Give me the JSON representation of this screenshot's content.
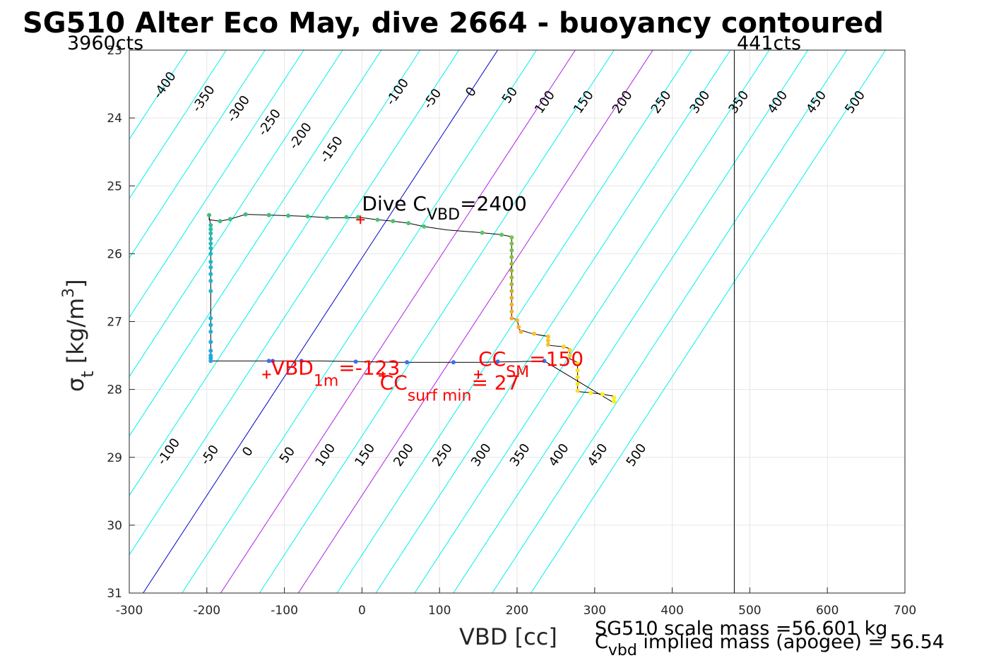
{
  "chart_data": {
    "type": "scatter",
    "title": "SG510 Alter Eco May, dive 2664 - buoyancy contoured",
    "xlabel": "VBD [cc]",
    "ylabel": "σ_t [kg/m^3]",
    "ylabel_main": "σ",
    "ylabel_sub": "t",
    "ylabel_rest": " [kg/m",
    "ylabel_sup": "3",
    "ylabel_close": "]",
    "xlim": [
      -300,
      700
    ],
    "ylim": [
      31,
      23
    ],
    "xticks": [
      "-300",
      "-200",
      "-100",
      "0",
      "100",
      "200",
      "300",
      "400",
      "500",
      "600",
      "700"
    ],
    "yticks": [
      "23",
      "24",
      "25",
      "26",
      "27",
      "28",
      "29",
      "30",
      "31"
    ],
    "grid": true,
    "limit_line_x": 480,
    "counts_left": "3960cts",
    "counts_right": "441cts",
    "contour_slope": 0.0175,
    "contour_levels": [
      -400,
      -350,
      -300,
      -250,
      -200,
      -150,
      -100,
      -50,
      0,
      50,
      100,
      150,
      200,
      250,
      300,
      350,
      400,
      450,
      500
    ],
    "contour_colors": {
      "default": "#00f0f0",
      "zero": "#0000cc",
      "highlight": "#b020e0"
    },
    "highlight_levels": [
      100,
      200
    ],
    "top_labels": [
      {
        "text": "-400",
        "x": -250,
        "y": 23.55
      },
      {
        "text": "-350",
        "x": -200,
        "y": 23.75
      },
      {
        "text": "-300",
        "x": -155,
        "y": 23.9
      },
      {
        "text": "-250",
        "x": -115,
        "y": 24.1
      },
      {
        "text": "-200",
        "x": -75,
        "y": 24.3
      },
      {
        "text": "-150",
        "x": -35,
        "y": 24.5
      },
      {
        "text": "-100",
        "x": 50,
        "y": 23.65
      },
      {
        "text": "-50",
        "x": 95,
        "y": 23.75
      },
      {
        "text": "0",
        "x": 145,
        "y": 23.65
      },
      {
        "text": "50",
        "x": 195,
        "y": 23.7
      },
      {
        "text": "100",
        "x": 240,
        "y": 23.8
      },
      {
        "text": "150",
        "x": 290,
        "y": 23.8
      },
      {
        "text": "200",
        "x": 340,
        "y": 23.8
      },
      {
        "text": "250",
        "x": 390,
        "y": 23.8
      },
      {
        "text": "300",
        "x": 440,
        "y": 23.8
      },
      {
        "text": "350",
        "x": 490,
        "y": 23.8
      },
      {
        "text": "400",
        "x": 540,
        "y": 23.8
      },
      {
        "text": "450",
        "x": 590,
        "y": 23.8
      },
      {
        "text": "500",
        "x": 640,
        "y": 23.8
      }
    ],
    "bottom_labels": [
      {
        "text": "-100",
        "x": -245,
        "y": 28.95
      },
      {
        "text": "-50",
        "x": -192,
        "y": 29.0
      },
      {
        "text": "0",
        "x": -143,
        "y": 28.95
      },
      {
        "text": "50",
        "x": -92,
        "y": 29.0
      },
      {
        "text": "100",
        "x": -43,
        "y": 29.0
      },
      {
        "text": "150",
        "x": 8,
        "y": 29.0
      },
      {
        "text": "200",
        "x": 58,
        "y": 29.0
      },
      {
        "text": "250",
        "x": 108,
        "y": 29.0
      },
      {
        "text": "300",
        "x": 158,
        "y": 29.0
      },
      {
        "text": "350",
        "x": 208,
        "y": 29.0
      },
      {
        "text": "400",
        "x": 258,
        "y": 29.0
      },
      {
        "text": "450",
        "x": 308,
        "y": 29.0
      },
      {
        "text": "500",
        "x": 358,
        "y": 29.0
      }
    ],
    "trajectory": [
      [
        -197,
        25.45
      ],
      [
        -197,
        25.5
      ],
      [
        -183,
        25.52
      ],
      [
        -170,
        25.49
      ],
      [
        -150,
        25.42
      ],
      [
        -120,
        25.43
      ],
      [
        -95,
        25.44
      ],
      [
        -70,
        25.45
      ],
      [
        -45,
        25.47
      ],
      [
        -20,
        25.47
      ],
      [
        0,
        25.47
      ],
      [
        20,
        25.5
      ],
      [
        40,
        25.52
      ],
      [
        60,
        25.55
      ],
      [
        80,
        25.6
      ],
      [
        110,
        25.65
      ],
      [
        155,
        25.69
      ],
      [
        180,
        25.72
      ],
      [
        193,
        25.75
      ],
      [
        193,
        26.0
      ],
      [
        193,
        26.3
      ],
      [
        193,
        26.6
      ],
      [
        193,
        26.95
      ],
      [
        200,
        26.97
      ],
      [
        203,
        27.12
      ],
      [
        220,
        27.18
      ],
      [
        240,
        27.22
      ],
      [
        240,
        27.35
      ],
      [
        260,
        27.37
      ],
      [
        268,
        27.4
      ],
      [
        268,
        27.55
      ],
      [
        278,
        27.6
      ],
      [
        278,
        28.03
      ],
      [
        295,
        28.05
      ],
      [
        310,
        28.07
      ],
      [
        325,
        28.1
      ],
      [
        325,
        28.2
      ],
      [
        235,
        27.58
      ],
      [
        200,
        27.59
      ],
      [
        150,
        27.6
      ],
      [
        100,
        27.6
      ],
      [
        50,
        27.6
      ],
      [
        0,
        27.59
      ],
      [
        -50,
        27.58
      ],
      [
        -100,
        27.58
      ],
      [
        -150,
        27.58
      ],
      [
        -195,
        27.58
      ],
      [
        -195,
        27.5
      ],
      [
        -195,
        27.2
      ],
      [
        -195,
        26.8
      ],
      [
        -195,
        26.4
      ],
      [
        -195,
        26.0
      ],
      [
        -195,
        25.6
      ],
      [
        -197,
        25.45
      ]
    ],
    "points": [
      {
        "x": -197,
        "y": 25.43,
        "c": "#3fbf7f"
      },
      {
        "x": -183,
        "y": 25.52,
        "c": "#3fbf7f"
      },
      {
        "x": -170,
        "y": 25.49,
        "c": "#3fbf7f"
      },
      {
        "x": -150,
        "y": 25.42,
        "c": "#3fbf7f"
      },
      {
        "x": -120,
        "y": 25.43,
        "c": "#3fbf7f"
      },
      {
        "x": -95,
        "y": 25.44,
        "c": "#3fbf7f"
      },
      {
        "x": -70,
        "y": 25.45,
        "c": "#3fbf7f"
      },
      {
        "x": -45,
        "y": 25.47,
        "c": "#3fbf7f"
      },
      {
        "x": -20,
        "y": 25.46,
        "c": "#3fbf7f"
      },
      {
        "x": -5,
        "y": 25.46,
        "c": "#3fbf7f"
      },
      {
        "x": 20,
        "y": 25.5,
        "c": "#4cc46e"
      },
      {
        "x": 40,
        "y": 25.52,
        "c": "#4cc46e"
      },
      {
        "x": 60,
        "y": 25.55,
        "c": "#4cc46e"
      },
      {
        "x": 80,
        "y": 25.6,
        "c": "#4cc46e"
      },
      {
        "x": 155,
        "y": 25.69,
        "c": "#5ac762"
      },
      {
        "x": 180,
        "y": 25.72,
        "c": "#5ac762"
      },
      {
        "x": 193,
        "y": 25.76,
        "c": "#7cc24a"
      },
      {
        "x": 193,
        "y": 25.85,
        "c": "#7cc24a"
      },
      {
        "x": 193,
        "y": 25.95,
        "c": "#7cc24a"
      },
      {
        "x": 193,
        "y": 26.05,
        "c": "#8cc040"
      },
      {
        "x": 193,
        "y": 26.15,
        "c": "#8cc040"
      },
      {
        "x": 193,
        "y": 26.25,
        "c": "#9cbd38"
      },
      {
        "x": 193,
        "y": 26.35,
        "c": "#a8b935"
      },
      {
        "x": 193,
        "y": 26.45,
        "c": "#b8b532"
      },
      {
        "x": 193,
        "y": 26.55,
        "c": "#d0b030"
      },
      {
        "x": 193,
        "y": 26.65,
        "c": "#e6ae30"
      },
      {
        "x": 193,
        "y": 26.75,
        "c": "#f5ad35"
      },
      {
        "x": 193,
        "y": 26.85,
        "c": "#f5ad35"
      },
      {
        "x": 193,
        "y": 26.95,
        "c": "#f5ad35"
      },
      {
        "x": 200,
        "y": 26.98,
        "c": "#f5b535"
      },
      {
        "x": 202,
        "y": 27.08,
        "c": "#f5b535"
      },
      {
        "x": 205,
        "y": 27.15,
        "c": "#f5b535"
      },
      {
        "x": 222,
        "y": 27.18,
        "c": "#f8c030"
      },
      {
        "x": 240,
        "y": 27.22,
        "c": "#f8c030"
      },
      {
        "x": 240,
        "y": 27.28,
        "c": "#f8c030"
      },
      {
        "x": 240,
        "y": 27.34,
        "c": "#f8c030"
      },
      {
        "x": 260,
        "y": 27.37,
        "c": "#fad028"
      },
      {
        "x": 268,
        "y": 27.42,
        "c": "#fad028"
      },
      {
        "x": 268,
        "y": 27.5,
        "c": "#fad028"
      },
      {
        "x": 278,
        "y": 27.62,
        "c": "#fbe020"
      },
      {
        "x": 278,
        "y": 27.72,
        "c": "#fbe020"
      },
      {
        "x": 278,
        "y": 27.82,
        "c": "#fbe020"
      },
      {
        "x": 278,
        "y": 27.92,
        "c": "#fbe020"
      },
      {
        "x": 278,
        "y": 28.02,
        "c": "#fbe020"
      },
      {
        "x": 295,
        "y": 28.05,
        "c": "#fdf015"
      },
      {
        "x": 310,
        "y": 28.07,
        "c": "#fdf015"
      },
      {
        "x": 325,
        "y": 28.12,
        "c": "#fdf015"
      },
      {
        "x": 325,
        "y": 28.18,
        "c": "#fdf015"
      },
      {
        "x": 235,
        "y": 27.58,
        "c": "#3b6ef0"
      },
      {
        "x": 175,
        "y": 27.59,
        "c": "#3b6ef0"
      },
      {
        "x": 118,
        "y": 27.6,
        "c": "#3b6ef0"
      },
      {
        "x": 58,
        "y": 27.6,
        "c": "#3b6ef0"
      },
      {
        "x": -8,
        "y": 27.59,
        "c": "#3b6ef0"
      },
      {
        "x": -78,
        "y": 27.58,
        "c": "#3b6ef0"
      },
      {
        "x": -115,
        "y": 27.58,
        "c": "#3b6ef0"
      },
      {
        "x": -120,
        "y": 27.58,
        "c": "#3b6ef0"
      },
      {
        "x": -195,
        "y": 27.58,
        "c": "#1fa8e0"
      },
      {
        "x": -195,
        "y": 27.54,
        "c": "#1fa8e0"
      },
      {
        "x": -195,
        "y": 27.5,
        "c": "#1fa8e0"
      },
      {
        "x": -195,
        "y": 27.43,
        "c": "#1fa8e0"
      },
      {
        "x": -195,
        "y": 27.3,
        "c": "#1fa8e0"
      },
      {
        "x": -195,
        "y": 27.15,
        "c": "#1fb0d8"
      },
      {
        "x": -195,
        "y": 27.05,
        "c": "#1fb0d8"
      },
      {
        "x": -195,
        "y": 26.95,
        "c": "#1fb0d8"
      },
      {
        "x": -195,
        "y": 26.55,
        "c": "#1fb5cc"
      },
      {
        "x": -195,
        "y": 26.4,
        "c": "#1fb5cc"
      },
      {
        "x": -195,
        "y": 26.3,
        "c": "#1fb5cc"
      },
      {
        "x": -195,
        "y": 26.2,
        "c": "#1fb5cc"
      },
      {
        "x": -195,
        "y": 26.12,
        "c": "#1fb5cc"
      },
      {
        "x": -195,
        "y": 26.0,
        "c": "#22b8c0"
      },
      {
        "x": -195,
        "y": 25.92,
        "c": "#22b8c0"
      },
      {
        "x": -195,
        "y": 25.85,
        "c": "#22b8c0"
      },
      {
        "x": -195,
        "y": 25.78,
        "c": "#28bab0"
      },
      {
        "x": -195,
        "y": 25.7,
        "c": "#28bab0"
      },
      {
        "x": -195,
        "y": 25.64,
        "c": "#2ebca0"
      },
      {
        "x": -195,
        "y": 25.58,
        "c": "#2ebca0"
      }
    ],
    "markers": [
      {
        "name": "dive-cvbd-marker",
        "x": -2,
        "y": 25.5
      },
      {
        "name": "vbd-1m-marker",
        "x": -123,
        "y": 27.78
      },
      {
        "name": "cc-surf-min-marker",
        "x": 27,
        "y": 27.8
      },
      {
        "name": "cc-sm-marker",
        "x": 150,
        "y": 27.78
      }
    ],
    "annotations": {
      "dive_cvbd": {
        "main": "Dive C",
        "sub": "VBD",
        "rest": "=2400",
        "x": 0,
        "y": 25.36
      },
      "vbd_1m": {
        "main": "VBD",
        "sub": "1m",
        "rest": "=-123",
        "x": -117,
        "y": 27.78
      },
      "cc_sm": {
        "main": "CC",
        "sub": "SM",
        "rest": "=150",
        "x": 150,
        "y": 27.65
      },
      "cc_surf_min": {
        "main": "CC",
        "sub": "surf min",
        "rest": "= 27",
        "x": 23,
        "y": 28.0
      }
    },
    "footer": {
      "line1": "SG510 scale mass =56.601 kg",
      "line2_main": "C",
      "line2_sub": "vbd",
      "line2_rest": " implied mass (apogee) = 56.54"
    }
  }
}
